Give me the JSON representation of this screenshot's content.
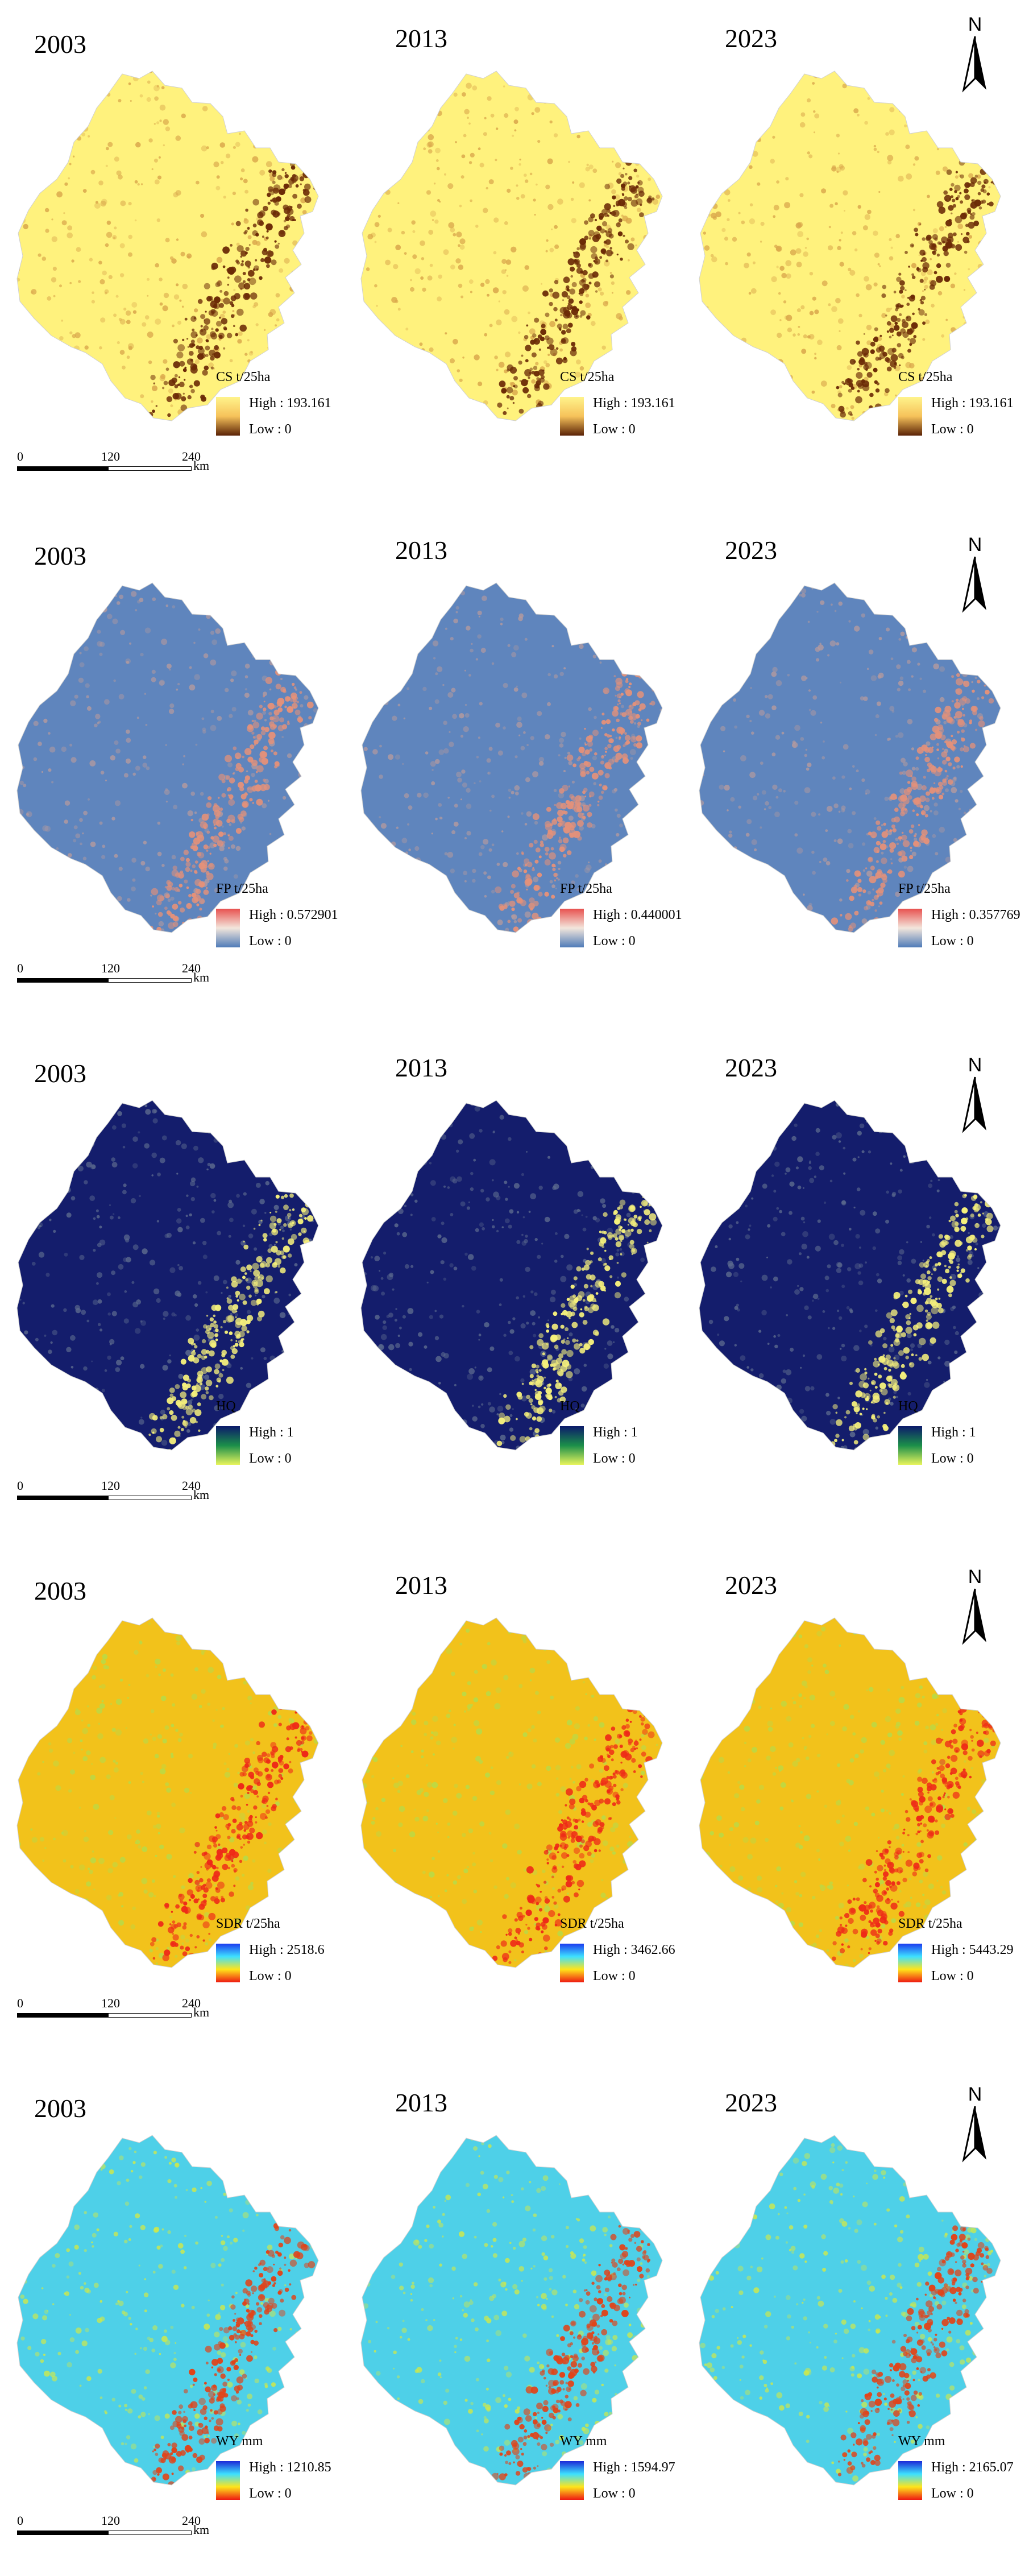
{
  "rows": [
    {
      "panels": [
        {
          "year": "2003",
          "legend_title": "CS t/25ha",
          "high": "High : 193.161",
          "low": "Low : 0"
        },
        {
          "year": "2013",
          "legend_title": "CS t/25ha",
          "high": "High : 193.161",
          "low": "Low : 0"
        },
        {
          "year": "2023",
          "legend_title": "CS t/25ha",
          "high": "High : 193.161",
          "low": "Low : 0"
        }
      ],
      "colors": {
        "base": "#fff27d",
        "mid": "#d9a54a",
        "high": "#6b2a06"
      },
      "ramp": [
        "#fff48c",
        "#f6c25a",
        "#5a2206"
      ]
    },
    {
      "panels": [
        {
          "year": "2003",
          "legend_title": "FP t/25ha",
          "high": "High : 0.572901",
          "low": "Low : 0"
        },
        {
          "year": "2013",
          "legend_title": "FP t/25ha",
          "high": "High : 0.440001",
          "low": "Low : 0"
        },
        {
          "year": "2023",
          "legend_title": "FP t/25ha",
          "high": "High : 0.357769",
          "low": "Low : 0"
        }
      ],
      "colors": {
        "base": "#5f85bd",
        "mid": "#b39a9f",
        "high": "#e3917a"
      },
      "ramp": [
        "#e8514f",
        "#f3e6dc",
        "#4f7bb8"
      ]
    },
    {
      "panels": [
        {
          "year": "2003",
          "legend_title": "HQ",
          "high": "High : 1",
          "low": "Low : 0"
        },
        {
          "year": "2013",
          "legend_title": "HQ",
          "high": "High : 1",
          "low": "Low : 0"
        },
        {
          "year": "2023",
          "legend_title": "HQ",
          "high": "High : 1",
          "low": "Low : 0"
        }
      ],
      "colors": {
        "base": "#141d6c",
        "mid": "#5c6a8e",
        "high": "#f5f07c"
      },
      "ramp": [
        "#0c1a6b",
        "#1b8f4a",
        "#e8f55c"
      ]
    },
    {
      "panels": [
        {
          "year": "2003",
          "legend_title": "SDR t/25ha",
          "high": "High : 2518.6",
          "low": "Low : 0"
        },
        {
          "year": "2013",
          "legend_title": "SDR t/25ha",
          "high": "High : 3462.66",
          "low": "Low : 0"
        },
        {
          "year": "2023",
          "legend_title": "SDR t/25ha",
          "high": "High : 5443.29",
          "low": "Low : 0"
        }
      ],
      "colors": {
        "base": "#f2c21b",
        "mid": "#b4dc4a",
        "high": "#ee2a18"
      },
      "ramp": [
        "#1c3cf0",
        "#3de0ff",
        "#ffe51a",
        "#ee1a12"
      ]
    },
    {
      "panels": [
        {
          "year": "2003",
          "legend_title": "WY mm",
          "high": "High : 1210.85",
          "low": "Low : 0"
        },
        {
          "year": "2013",
          "legend_title": "WY mm",
          "high": "High : 1594.97",
          "low": "Low : 0"
        },
        {
          "year": "2023",
          "legend_title": "WY mm",
          "high": "High : 2165.07",
          "low": "Low : 0"
        }
      ],
      "colors": {
        "base": "#4ed0e8",
        "mid": "#cfe84a",
        "high": "#e0441a"
      },
      "ramp": [
        "#1c2bd8",
        "#3de0ff",
        "#ffe51a",
        "#ee1a12"
      ]
    }
  ],
  "north_label": "N",
  "scale": {
    "ticks": [
      "0",
      "120",
      "240"
    ],
    "unit": "km"
  }
}
